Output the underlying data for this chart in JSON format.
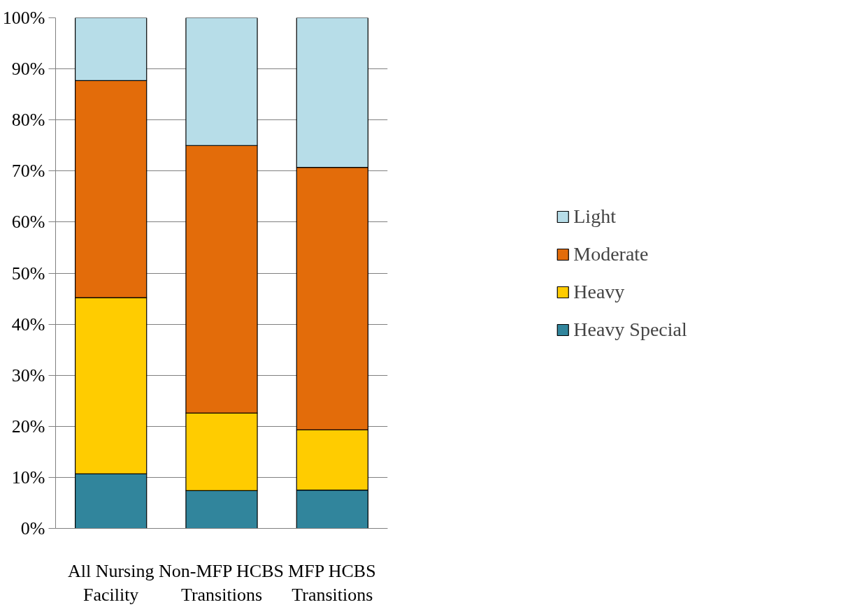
{
  "chart_data": {
    "type": "bar",
    "stacked": true,
    "categories": [
      "All Nursing Facility",
      "Non-MFP HCBS Transitions",
      "MFP HCBS Transitions"
    ],
    "series": [
      {
        "name": "Heavy Special",
        "color": "#31859c",
        "values": [
          10.7,
          7.4,
          7.5
        ]
      },
      {
        "name": "Heavy",
        "color": "#ffcc00",
        "values": [
          34.5,
          15.2,
          11.8
        ]
      },
      {
        "name": "Moderate",
        "color": "#e36c0a",
        "values": [
          42.5,
          52.4,
          51.4
        ]
      },
      {
        "name": "Light",
        "color": "#b7dde8",
        "values": [
          12.3,
          25.0,
          29.3
        ]
      }
    ],
    "ylim": [
      0,
      100
    ],
    "yticks": [
      {
        "value": 0,
        "label": "0%"
      },
      {
        "value": 10,
        "label": "10%"
      },
      {
        "value": 20,
        "label": "20%"
      },
      {
        "value": 30,
        "label": "30%"
      },
      {
        "value": 40,
        "label": "40%"
      },
      {
        "value": 50,
        "label": "50%"
      },
      {
        "value": 60,
        "label": "60%"
      },
      {
        "value": 70,
        "label": "70%"
      },
      {
        "value": 80,
        "label": "80%"
      },
      {
        "value": 90,
        "label": "90%"
      },
      {
        "value": 100,
        "label": "100%"
      }
    ],
    "grid": "y",
    "legend": "right"
  }
}
